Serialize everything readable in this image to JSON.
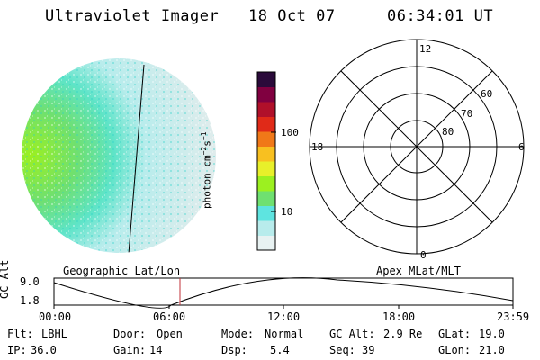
{
  "header": {
    "instrument": "Ultraviolet Imager",
    "date": "18 Oct 07",
    "time": "06:34:01 UT"
  },
  "colorbar": {
    "unit_label": "photon cm",
    "unit_sup1": "−2",
    "unit_mid": "s",
    "unit_sup2": "−1",
    "ticks": [
      "100",
      "10"
    ],
    "colors": [
      "#e8f2f2",
      "#b8ecec",
      "#5ee4e0",
      "#6fe070",
      "#9cf020",
      "#e8f02a",
      "#f8c020",
      "#f07818",
      "#e02a18",
      "#b0102a",
      "#800040",
      "#2a0a3a"
    ]
  },
  "polar": {
    "mlt_labels": {
      "top": "12",
      "left": "18",
      "right": "6",
      "bottom": "0"
    },
    "lat_labels": [
      "60",
      "70",
      "80"
    ]
  },
  "panel_labels": {
    "left": "Geographic Lat/Lon",
    "right": "Apex MLat/MLT"
  },
  "gc_alt_plot": {
    "ylabel": "GC Alt",
    "ytick_top": "9.0",
    "ytick_bottom": "1.8",
    "xticks": [
      "00:00",
      "06:00",
      "12:00",
      "18:00",
      "23:59"
    ],
    "marker_time": "06:34"
  },
  "footer": {
    "row1": [
      {
        "label": "Flt:",
        "value": "LBHL"
      },
      {
        "label": "Door:",
        "value": "Open"
      },
      {
        "label": "Mode:",
        "value": "Normal"
      },
      {
        "label": "GC Alt:",
        "value": "2.9 Re"
      },
      {
        "label": "GLat:",
        "value": "19.0"
      }
    ],
    "row2": [
      {
        "label": "IP:",
        "value": "36.0"
      },
      {
        "label": "Gain:",
        "value": "14"
      },
      {
        "label": "Dsp:",
        "value": "5.4"
      },
      {
        "label": "Seq:",
        "value": "39"
      },
      {
        "label": "GLon:",
        "value": "21.0"
      }
    ]
  }
}
